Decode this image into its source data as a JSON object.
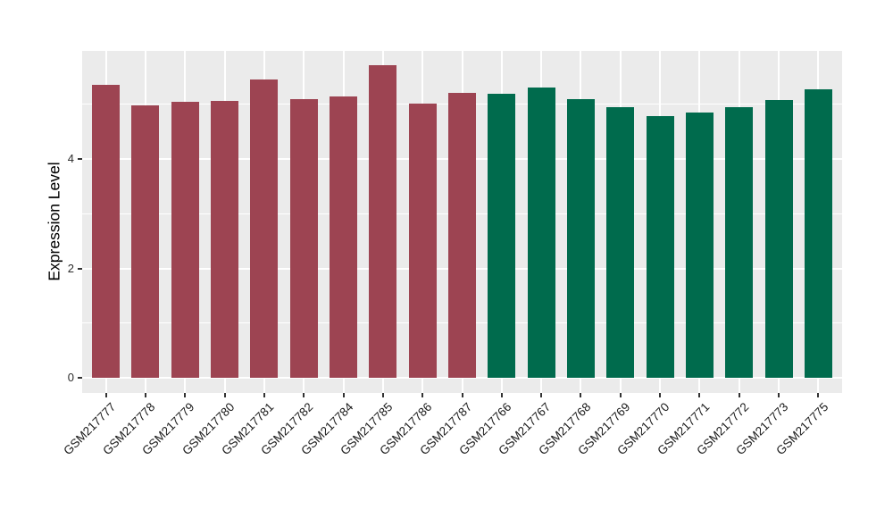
{
  "chart_data": {
    "type": "bar",
    "title": "",
    "xlabel": "",
    "ylabel": "Expression Level",
    "yticks": [
      0,
      2,
      4
    ],
    "yticks_minor": [
      1,
      3,
      5
    ],
    "ylim": [
      -0.29,
      5.97
    ],
    "grid": true,
    "legend": false,
    "panel_bg": "#EBEBEB",
    "grid_color": "#FFFFFF",
    "tick_color": "#333333",
    "group_colors": {
      "left": "#9D4452",
      "right": "#006B4D"
    },
    "bars": [
      {
        "label": "GSM217777",
        "value": 5.35,
        "group": "left"
      },
      {
        "label": "GSM217778",
        "value": 4.98,
        "group": "left"
      },
      {
        "label": "GSM217779",
        "value": 5.04,
        "group": "left"
      },
      {
        "label": "GSM217780",
        "value": 5.06,
        "group": "left"
      },
      {
        "label": "GSM217781",
        "value": 5.45,
        "group": "left"
      },
      {
        "label": "GSM217782",
        "value": 5.1,
        "group": "left"
      },
      {
        "label": "GSM217784",
        "value": 5.15,
        "group": "left"
      },
      {
        "label": "GSM217785",
        "value": 5.71,
        "group": "left"
      },
      {
        "label": "GSM217786",
        "value": 5.02,
        "group": "left"
      },
      {
        "label": "GSM217787",
        "value": 5.21,
        "group": "left"
      },
      {
        "label": "GSM217766",
        "value": 5.19,
        "group": "right"
      },
      {
        "label": "GSM217767",
        "value": 5.31,
        "group": "right"
      },
      {
        "label": "GSM217768",
        "value": 5.1,
        "group": "right"
      },
      {
        "label": "GSM217769",
        "value": 4.94,
        "group": "right"
      },
      {
        "label": "GSM217770",
        "value": 4.78,
        "group": "right"
      },
      {
        "label": "GSM217771",
        "value": 4.85,
        "group": "right"
      },
      {
        "label": "GSM217772",
        "value": 4.94,
        "group": "right"
      },
      {
        "label": "GSM217773",
        "value": 5.08,
        "group": "right"
      },
      {
        "label": "GSM217775",
        "value": 5.28,
        "group": "right"
      }
    ]
  }
}
